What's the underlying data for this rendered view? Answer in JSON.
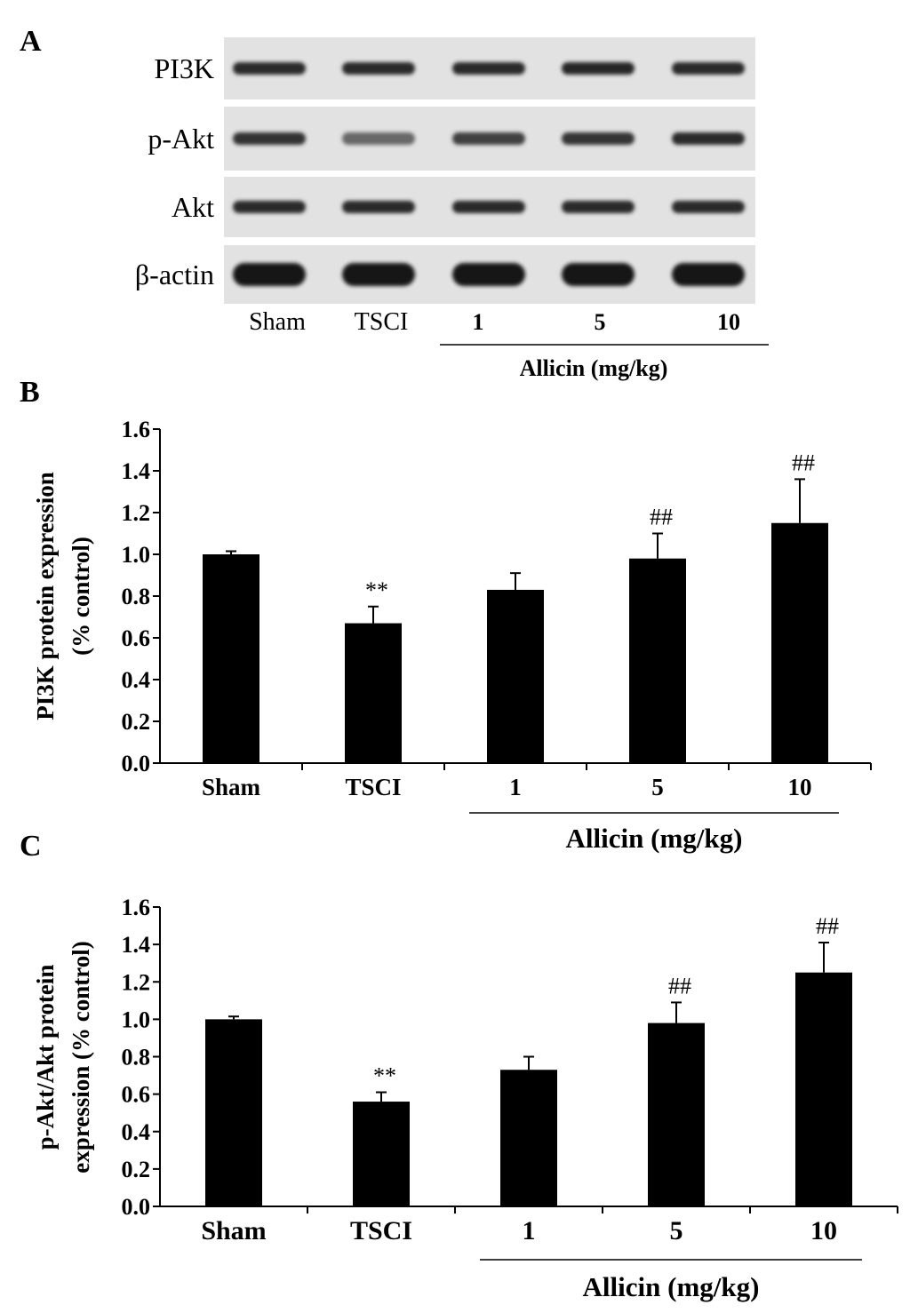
{
  "panel_a": {
    "letter": "A",
    "rows": [
      "PI3K",
      "p-Akt",
      "Akt",
      "β-actin"
    ],
    "lanes": [
      "Sham",
      "TSCI",
      "1",
      "5",
      "10"
    ],
    "group_label": "Allicin (mg/kg)",
    "band_intensity": [
      [
        0.85,
        0.85,
        0.85,
        0.88,
        0.85
      ],
      [
        0.8,
        0.45,
        0.7,
        0.78,
        0.85
      ],
      [
        0.85,
        0.85,
        0.85,
        0.85,
        0.85
      ],
      [
        1.0,
        1.0,
        1.0,
        1.0,
        1.0
      ]
    ]
  },
  "chart_data": [
    {
      "panel": "B",
      "type": "bar",
      "categories": [
        "Sham",
        "TSCI",
        "1",
        "5",
        "10"
      ],
      "values": [
        1.0,
        0.67,
        0.83,
        0.98,
        1.15
      ],
      "errors": [
        0.015,
        0.08,
        0.08,
        0.12,
        0.21
      ],
      "annotations": [
        "",
        "**",
        "",
        "##",
        "##"
      ],
      "ylabel": "PI3K protein expression (% control)",
      "ylabel_lines": [
        "PI3K protein expression",
        "(% control)"
      ],
      "ylim": [
        0.0,
        1.6
      ],
      "yticks": [
        "0.0",
        "0.2",
        "0.4",
        "0.6",
        "0.8",
        "1.0",
        "1.2",
        "1.4",
        "1.6"
      ],
      "group_label": "Allicin (mg/kg)",
      "bar_color": "#000000"
    },
    {
      "panel": "C",
      "type": "bar",
      "categories": [
        "Sham",
        "TSCI",
        "1",
        "5",
        "10"
      ],
      "values": [
        1.0,
        0.56,
        0.73,
        0.98,
        1.25
      ],
      "errors": [
        0.015,
        0.05,
        0.07,
        0.11,
        0.16
      ],
      "annotations": [
        "",
        "**",
        "",
        "##",
        "##"
      ],
      "ylabel": "p-Akt/Akt protein expression (% control)",
      "ylabel_lines": [
        "p-Akt/Akt protein",
        "expression (% control)"
      ],
      "ylim": [
        0.0,
        1.6
      ],
      "yticks": [
        "0.0",
        "0.2",
        "0.4",
        "0.6",
        "0.8",
        "1.0",
        "1.2",
        "1.4",
        "1.6"
      ],
      "group_label": "Allicin (mg/kg)",
      "bar_color": "#000000"
    }
  ]
}
